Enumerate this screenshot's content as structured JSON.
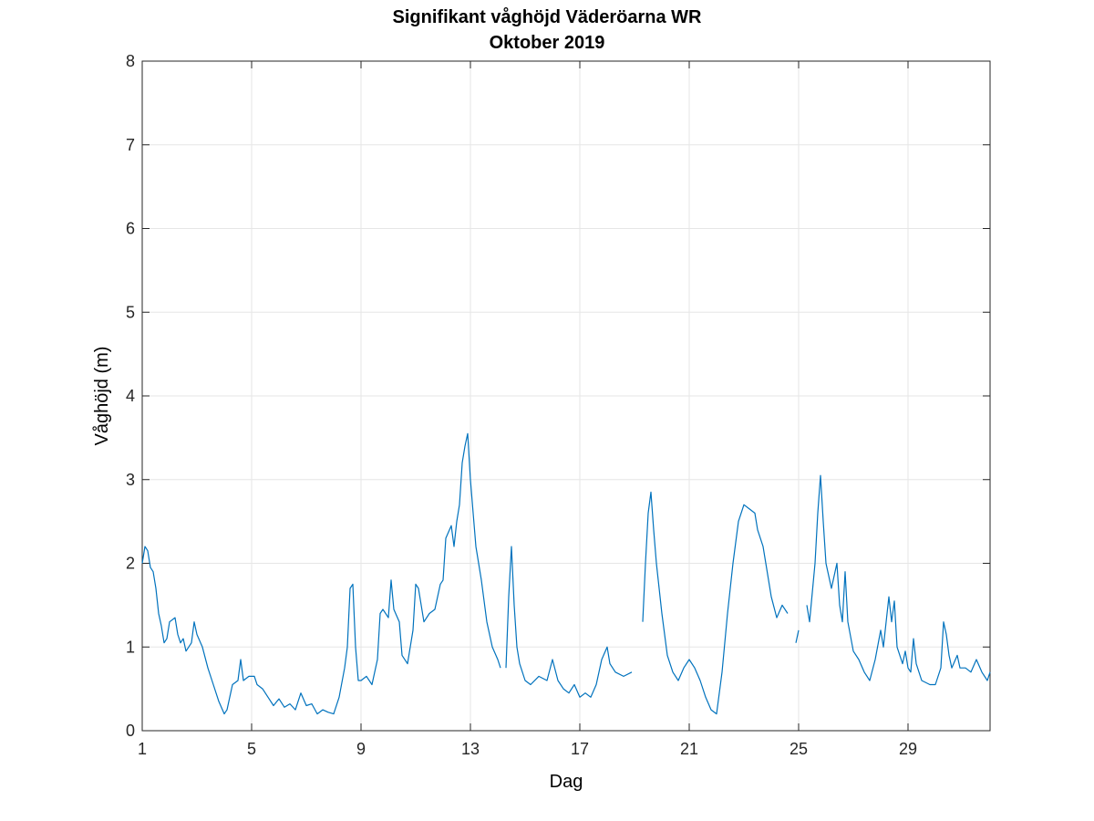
{
  "chart_data": {
    "type": "line",
    "title": "Signifikant våghöjd Väderöarna WR",
    "subtitle": "Oktober 2019",
    "xlabel": "Dag",
    "ylabel": "Våghöjd (m)",
    "xlim": [
      1,
      32
    ],
    "ylim": [
      0,
      8
    ],
    "xticks": [
      1,
      5,
      9,
      13,
      17,
      21,
      25,
      29
    ],
    "yticks": [
      0,
      1,
      2,
      3,
      4,
      5,
      6,
      7,
      8
    ],
    "grid": true,
    "line_color": "#0072BD",
    "series": [
      {
        "segments": [
          [
            [
              1.0,
              2.0
            ],
            [
              1.1,
              2.2
            ],
            [
              1.2,
              2.15
            ],
            [
              1.3,
              1.95
            ],
            [
              1.4,
              1.9
            ],
            [
              1.5,
              1.7
            ],
            [
              1.6,
              1.4
            ],
            [
              1.7,
              1.25
            ],
            [
              1.8,
              1.05
            ],
            [
              1.9,
              1.1
            ],
            [
              2.0,
              1.3
            ],
            [
              2.2,
              1.35
            ],
            [
              2.3,
              1.15
            ],
            [
              2.4,
              1.05
            ],
            [
              2.5,
              1.1
            ],
            [
              2.6,
              0.95
            ],
            [
              2.8,
              1.05
            ],
            [
              2.9,
              1.3
            ],
            [
              3.0,
              1.15
            ],
            [
              3.2,
              1.0
            ],
            [
              3.4,
              0.75
            ],
            [
              3.6,
              0.55
            ],
            [
              3.8,
              0.35
            ],
            [
              4.0,
              0.2
            ],
            [
              4.1,
              0.25
            ],
            [
              4.3,
              0.55
            ],
            [
              4.5,
              0.6
            ],
            [
              4.6,
              0.85
            ],
            [
              4.7,
              0.6
            ],
            [
              4.9,
              0.65
            ],
            [
              5.1,
              0.65
            ],
            [
              5.2,
              0.55
            ],
            [
              5.4,
              0.5
            ],
            [
              5.6,
              0.4
            ],
            [
              5.8,
              0.3
            ],
            [
              6.0,
              0.38
            ],
            [
              6.2,
              0.28
            ],
            [
              6.4,
              0.32
            ],
            [
              6.6,
              0.25
            ],
            [
              6.8,
              0.45
            ],
            [
              7.0,
              0.3
            ],
            [
              7.2,
              0.32
            ],
            [
              7.4,
              0.2
            ],
            [
              7.6,
              0.25
            ],
            [
              7.8,
              0.22
            ],
            [
              8.0,
              0.2
            ],
            [
              8.2,
              0.4
            ],
            [
              8.4,
              0.75
            ],
            [
              8.5,
              1.0
            ],
            [
              8.6,
              1.7
            ],
            [
              8.7,
              1.75
            ],
            [
              8.8,
              1.0
            ],
            [
              8.9,
              0.6
            ],
            [
              9.0,
              0.6
            ],
            [
              9.2,
              0.65
            ],
            [
              9.4,
              0.55
            ],
            [
              9.6,
              0.85
            ],
            [
              9.7,
              1.4
            ],
            [
              9.8,
              1.45
            ],
            [
              10.0,
              1.35
            ],
            [
              10.1,
              1.8
            ],
            [
              10.2,
              1.45
            ],
            [
              10.4,
              1.3
            ],
            [
              10.5,
              0.9
            ],
            [
              10.7,
              0.8
            ],
            [
              10.9,
              1.2
            ],
            [
              11.0,
              1.75
            ],
            [
              11.1,
              1.7
            ],
            [
              11.3,
              1.3
            ],
            [
              11.5,
              1.4
            ],
            [
              11.7,
              1.45
            ],
            [
              11.9,
              1.75
            ],
            [
              12.0,
              1.8
            ],
            [
              12.1,
              2.3
            ],
            [
              12.3,
              2.45
            ],
            [
              12.4,
              2.2
            ],
            [
              12.5,
              2.5
            ],
            [
              12.6,
              2.7
            ],
            [
              12.7,
              3.2
            ],
            [
              12.8,
              3.4
            ],
            [
              12.9,
              3.55
            ],
            [
              13.0,
              3.0
            ],
            [
              13.1,
              2.6
            ],
            [
              13.2,
              2.2
            ],
            [
              13.4,
              1.8
            ],
            [
              13.6,
              1.3
            ],
            [
              13.8,
              1.0
            ],
            [
              14.0,
              0.85
            ],
            [
              14.1,
              0.75
            ]
          ],
          [
            [
              14.3,
              0.75
            ],
            [
              14.4,
              1.6
            ],
            [
              14.5,
              2.2
            ],
            [
              14.6,
              1.5
            ],
            [
              14.7,
              1.0
            ],
            [
              14.8,
              0.8
            ],
            [
              15.0,
              0.6
            ],
            [
              15.2,
              0.55
            ],
            [
              15.5,
              0.65
            ],
            [
              15.8,
              0.6
            ],
            [
              16.0,
              0.85
            ],
            [
              16.2,
              0.6
            ],
            [
              16.4,
              0.5
            ],
            [
              16.6,
              0.45
            ],
            [
              16.8,
              0.55
            ],
            [
              17.0,
              0.4
            ],
            [
              17.2,
              0.45
            ],
            [
              17.4,
              0.4
            ],
            [
              17.6,
              0.55
            ],
            [
              17.8,
              0.85
            ],
            [
              18.0,
              1.0
            ],
            [
              18.1,
              0.8
            ],
            [
              18.3,
              0.7
            ],
            [
              18.6,
              0.65
            ],
            [
              18.9,
              0.7
            ]
          ],
          [
            [
              19.3,
              1.3
            ],
            [
              19.4,
              2.0
            ],
            [
              19.5,
              2.6
            ],
            [
              19.6,
              2.85
            ],
            [
              19.7,
              2.4
            ],
            [
              19.8,
              2.0
            ],
            [
              20.0,
              1.4
            ],
            [
              20.2,
              0.9
            ],
            [
              20.4,
              0.7
            ],
            [
              20.6,
              0.6
            ],
            [
              20.8,
              0.75
            ],
            [
              21.0,
              0.85
            ],
            [
              21.2,
              0.75
            ],
            [
              21.4,
              0.6
            ],
            [
              21.6,
              0.4
            ],
            [
              21.8,
              0.25
            ],
            [
              22.0,
              0.2
            ],
            [
              22.2,
              0.7
            ],
            [
              22.4,
              1.4
            ],
            [
              22.6,
              2.0
            ],
            [
              22.8,
              2.5
            ],
            [
              23.0,
              2.7
            ],
            [
              23.2,
              2.65
            ],
            [
              23.4,
              2.6
            ],
            [
              23.5,
              2.4
            ],
            [
              23.7,
              2.2
            ],
            [
              23.8,
              2.0
            ],
            [
              24.0,
              1.6
            ],
            [
              24.2,
              1.35
            ],
            [
              24.4,
              1.5
            ],
            [
              24.6,
              1.4
            ]
          ],
          [
            [
              24.9,
              1.05
            ],
            [
              25.0,
              1.2
            ]
          ],
          [
            [
              25.3,
              1.5
            ],
            [
              25.4,
              1.3
            ],
            [
              25.6,
              2.0
            ],
            [
              25.7,
              2.6
            ],
            [
              25.8,
              3.05
            ],
            [
              25.9,
              2.5
            ],
            [
              26.0,
              2.0
            ],
            [
              26.2,
              1.7
            ],
            [
              26.4,
              2.0
            ],
            [
              26.5,
              1.5
            ],
            [
              26.6,
              1.3
            ],
            [
              26.7,
              1.9
            ],
            [
              26.8,
              1.3
            ],
            [
              27.0,
              0.95
            ],
            [
              27.2,
              0.85
            ],
            [
              27.4,
              0.7
            ],
            [
              27.6,
              0.6
            ],
            [
              27.8,
              0.85
            ],
            [
              28.0,
              1.2
            ],
            [
              28.1,
              1.0
            ],
            [
              28.2,
              1.3
            ],
            [
              28.3,
              1.6
            ],
            [
              28.4,
              1.3
            ],
            [
              28.5,
              1.55
            ],
            [
              28.6,
              1.0
            ],
            [
              28.8,
              0.8
            ],
            [
              28.9,
              0.95
            ],
            [
              29.0,
              0.75
            ],
            [
              29.1,
              0.7
            ],
            [
              29.2,
              1.1
            ],
            [
              29.3,
              0.8
            ],
            [
              29.5,
              0.6
            ],
            [
              29.8,
              0.55
            ],
            [
              30.0,
              0.55
            ],
            [
              30.2,
              0.75
            ],
            [
              30.3,
              1.3
            ],
            [
              30.4,
              1.15
            ],
            [
              30.5,
              0.9
            ],
            [
              30.6,
              0.75
            ],
            [
              30.8,
              0.9
            ],
            [
              30.9,
              0.75
            ],
            [
              31.1,
              0.75
            ],
            [
              31.3,
              0.7
            ],
            [
              31.5,
              0.85
            ],
            [
              31.7,
              0.7
            ],
            [
              31.9,
              0.6
            ],
            [
              32.0,
              0.7
            ]
          ]
        ]
      }
    ]
  }
}
